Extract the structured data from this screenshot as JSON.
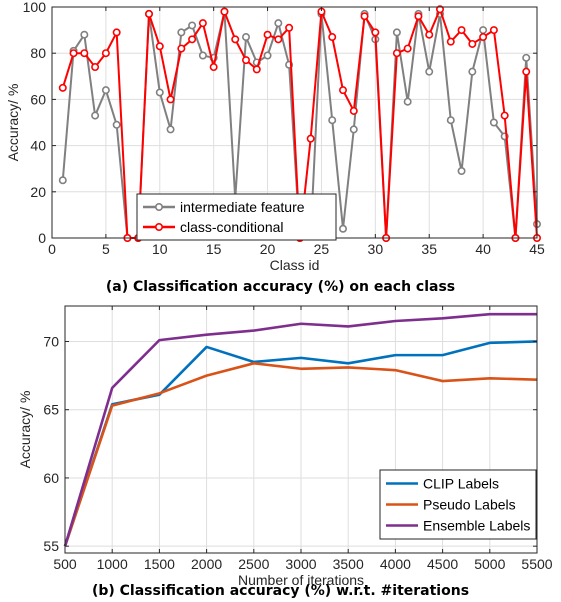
{
  "chart_data": [
    {
      "type": "line",
      "xlabel": "Class id",
      "ylabel": "Accuracy/ %",
      "xlim": [
        0,
        45
      ],
      "ylim": [
        0,
        100
      ],
      "xticks": [
        0,
        5,
        10,
        15,
        20,
        25,
        30,
        35,
        40,
        45
      ],
      "yticks": [
        0,
        20,
        40,
        60,
        80,
        100
      ],
      "grid": true,
      "legend_position": "bottom-left",
      "caption": "(a) Classification accuracy (%) on each class",
      "x": [
        1,
        2,
        3,
        4,
        5,
        6,
        7,
        8,
        9,
        10,
        11,
        12,
        13,
        14,
        15,
        16,
        17,
        18,
        19,
        20,
        21,
        22,
        23,
        24,
        25,
        26,
        27,
        28,
        29,
        30,
        31,
        32,
        33,
        34,
        35,
        36,
        37,
        38,
        39,
        40,
        41,
        42,
        43,
        44,
        45
      ],
      "series": [
        {
          "name": "intermediate feature",
          "color": "#808080",
          "marker": "circle",
          "values": [
            25,
            81,
            88,
            53,
            64,
            49,
            0,
            0,
            97,
            63,
            47,
            89,
            92,
            79,
            78,
            98,
            17,
            87,
            76,
            79,
            93,
            75,
            0,
            1,
            97,
            51,
            4,
            47,
            97,
            86,
            0,
            89,
            59,
            97,
            72,
            97,
            51,
            29,
            72,
            90,
            50,
            44,
            0,
            78,
            6
          ]
        },
        {
          "name": "class-conditional",
          "color": "#ff0000",
          "marker": "circle",
          "values": [
            65,
            80,
            80,
            74,
            80,
            89,
            0,
            0,
            97,
            83,
            60,
            82,
            86,
            93,
            74,
            98,
            86,
            77,
            73,
            88,
            86,
            91,
            0,
            43,
            98,
            87,
            64,
            55,
            96,
            89,
            0,
            80,
            82,
            96,
            88,
            99,
            85,
            90,
            84,
            87,
            90,
            53,
            0,
            72,
            0
          ]
        }
      ]
    },
    {
      "type": "line",
      "xlabel": "Number of iterations",
      "ylabel": "Accuracy/ %",
      "xlim": [
        500,
        5500
      ],
      "ylim": [
        54.5,
        72.6
      ],
      "xticks": [
        500,
        1000,
        1500,
        2000,
        2500,
        3000,
        3500,
        4000,
        4500,
        5000,
        5500
      ],
      "yticks": [
        55,
        60,
        65,
        70
      ],
      "grid": true,
      "legend_position": "bottom-right",
      "caption": "(b) Classification accuracy (%) w.r.t. #iterations",
      "x": [
        500,
        1000,
        1500,
        2000,
        2500,
        3000,
        3500,
        4000,
        4500,
        5000,
        5500
      ],
      "series": [
        {
          "name": "CLIP Labels",
          "color": "#0072bd",
          "values": [
            55.0,
            65.4,
            66.1,
            69.6,
            68.5,
            68.8,
            68.4,
            69.0,
            69.0,
            69.9,
            70.0
          ]
        },
        {
          "name": "Pseudo Labels",
          "color": "#d95319",
          "values": [
            55.0,
            65.3,
            66.2,
            67.5,
            68.4,
            68.0,
            68.1,
            67.9,
            67.1,
            67.3,
            67.2
          ]
        },
        {
          "name": "Ensemble Labels",
          "color": "#7e2f8e",
          "values": [
            55.0,
            66.6,
            70.1,
            70.5,
            70.8,
            71.3,
            71.1,
            71.5,
            71.7,
            72.0,
            72.0
          ]
        }
      ]
    }
  ]
}
